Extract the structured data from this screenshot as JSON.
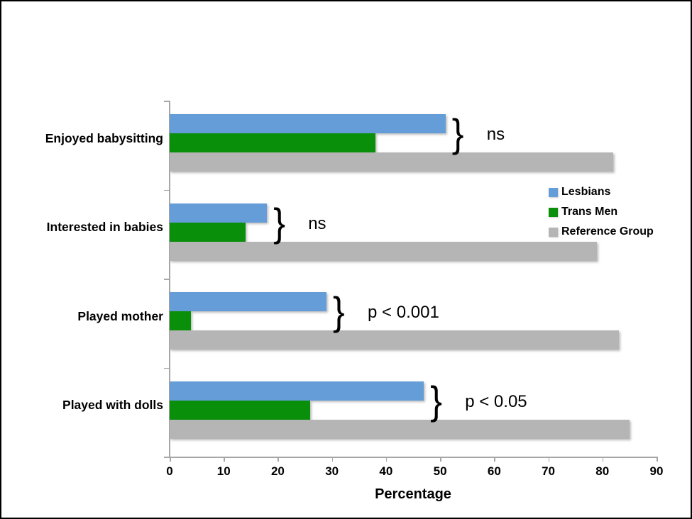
{
  "chart_data": {
    "type": "bar",
    "orientation": "horizontal",
    "title": "",
    "xlabel": "Percentage",
    "xlim": [
      0,
      90
    ],
    "x_ticks": [
      0,
      10,
      20,
      30,
      40,
      50,
      60,
      70,
      80,
      90
    ],
    "grid": false,
    "categories": [
      "Enjoyed babysitting",
      "Interested in babies",
      "Played mother",
      "Played with dolls"
    ],
    "series": [
      {
        "name": "Lesbians",
        "color": "#649DD7",
        "values": [
          51,
          18,
          29,
          47
        ]
      },
      {
        "name": "Trans Men",
        "color": "#0A8F0A",
        "values": [
          38,
          14,
          4,
          26
        ]
      },
      {
        "name": "Reference Group",
        "color": "#B5B5B5",
        "values": [
          82,
          79,
          83,
          85
        ]
      }
    ],
    "annotations": [
      {
        "category": "Enjoyed babysitting",
        "brace": "}",
        "label": "ns"
      },
      {
        "category": "Interested in babies",
        "brace": "}",
        "label": "ns"
      },
      {
        "category": "Played mother",
        "brace": "}",
        "label": "p < 0.001"
      },
      {
        "category": "Played with dolls",
        "brace": "}",
        "label": "p < 0.05"
      }
    ],
    "legend": {
      "position": "right",
      "entries": [
        "Lesbians",
        "Trans Men",
        "Reference Group"
      ]
    },
    "axis_color": "#A6A6A6",
    "text_color": "#000000"
  }
}
